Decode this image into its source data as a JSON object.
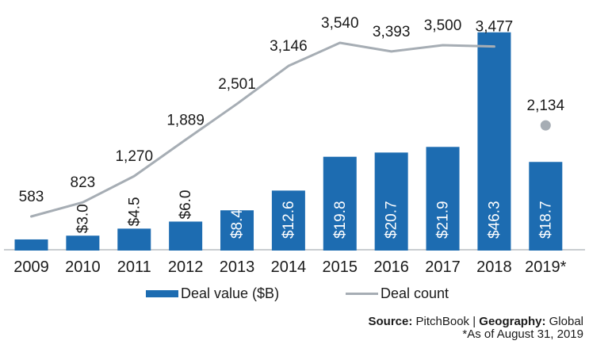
{
  "chart_data": {
    "type": "bar",
    "subtype": "combo-bar-line",
    "title": "",
    "xlabel": "",
    "ylabel": "",
    "categories": [
      "2009",
      "2010",
      "2011",
      "2012",
      "2013",
      "2014",
      "2015",
      "2016",
      "2017",
      "2018",
      "2019*"
    ],
    "series": [
      {
        "name": "Deal value ($B)",
        "type": "bar",
        "color": "#1d6cb1",
        "values": [
          2.2,
          3.0,
          4.5,
          6.0,
          8.4,
          12.6,
          19.8,
          20.7,
          21.9,
          46.3,
          18.7
        ],
        "labels": [
          "",
          "$3.0",
          "$4.5",
          "$6.0",
          "$8.4",
          "$12.6",
          "$19.8",
          "$20.7",
          "$21.9",
          "$46.3",
          "$18.7"
        ],
        "label_inside": [
          false,
          false,
          false,
          false,
          true,
          true,
          true,
          true,
          true,
          true,
          true
        ],
        "label_color_inside": "#ffffff",
        "label_color_outside": "#1a1a1a"
      },
      {
        "name": "Deal count",
        "type": "line",
        "color": "#a6adb4",
        "values": [
          583,
          823,
          1270,
          1889,
          2501,
          3146,
          3540,
          3393,
          3500,
          3477,
          2134
        ],
        "labels": [
          "583",
          "823",
          "1,270",
          "1,889",
          "2,501",
          "3,146",
          "3,540",
          "3,393",
          "3,500",
          "3,477",
          "2,134"
        ],
        "connected_through_index": 9,
        "detached_marker_index": 10,
        "label_color": "#1a1a1a"
      }
    ],
    "axes": {
      "x_axis_line_color": "#c9cdd1",
      "x_labels_color": "#1a1a1a",
      "value_axis_visible": false,
      "count_axis_visible": false,
      "gridlines": false
    },
    "legend_position": "bottom"
  },
  "legend": {
    "items": [
      {
        "label": "Deal value ($B)",
        "swatch": "bar",
        "color": "#1d6cb1"
      },
      {
        "label": "Deal count",
        "swatch": "line",
        "color": "#a6adb4"
      }
    ]
  },
  "footer": {
    "source_label": "Source: ",
    "source_value": "PitchBook | ",
    "geography_label": "Geography: ",
    "geography_value": "Global",
    "footnote": "*As of August 31, 2019"
  }
}
